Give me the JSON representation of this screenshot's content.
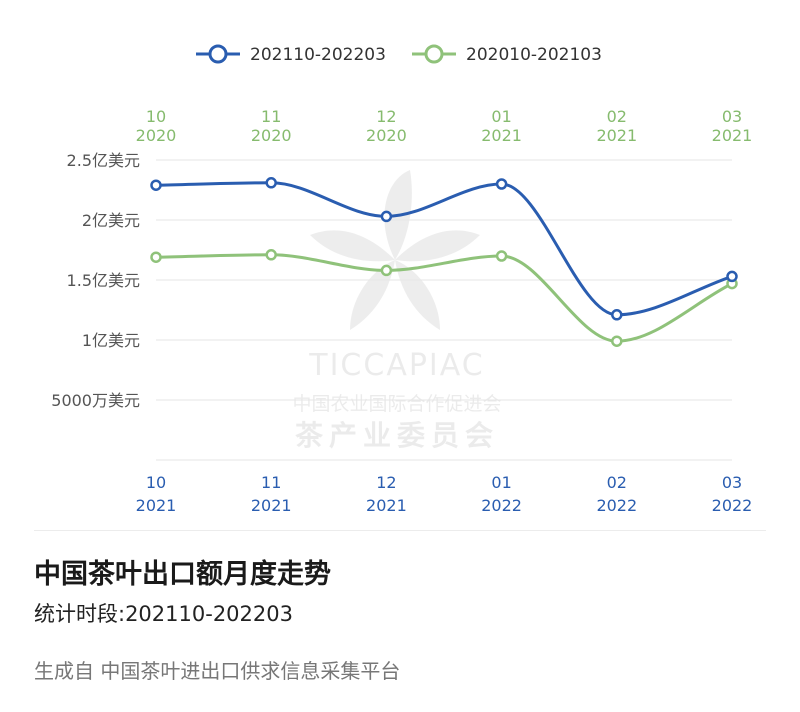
{
  "chart_data": {
    "type": "line",
    "legend_position": "top-center",
    "grid": true,
    "ylim": [
      0,
      2.5
    ],
    "y_ticks": [
      {
        "value": 2.5,
        "label": "2.5亿美元"
      },
      {
        "value": 2.0,
        "label": "2亿美元"
      },
      {
        "value": 1.5,
        "label": "1.5亿美元"
      },
      {
        "value": 1.0,
        "label": "1亿美元"
      },
      {
        "value": 0.5,
        "label": "5000万美元"
      }
    ],
    "x_bottom": {
      "color": "#2a5db0",
      "ticks": [
        {
          "month": "10",
          "year": "2021"
        },
        {
          "month": "11",
          "year": "2021"
        },
        {
          "month": "12",
          "year": "2021"
        },
        {
          "month": "01",
          "year": "2022"
        },
        {
          "month": "02",
          "year": "2022"
        },
        {
          "month": "03",
          "year": "2022"
        }
      ]
    },
    "x_top": {
      "color": "#86bb6e",
      "ticks": [
        {
          "month": "10",
          "year": "2020"
        },
        {
          "month": "11",
          "year": "2020"
        },
        {
          "month": "12",
          "year": "2020"
        },
        {
          "month": "01",
          "year": "2021"
        },
        {
          "month": "02",
          "year": "2021"
        },
        {
          "month": "03",
          "year": "2021"
        }
      ]
    },
    "series": [
      {
        "name": "202110-202203",
        "color": "#2a5db0",
        "axis": "bottom",
        "values": [
          2.29,
          2.31,
          2.03,
          2.3,
          1.21,
          1.53
        ]
      },
      {
        "name": "202010-202103",
        "color": "#8fc27a",
        "axis": "top",
        "values": [
          1.69,
          1.71,
          1.58,
          1.7,
          0.99,
          1.47
        ]
      }
    ]
  },
  "watermark": {
    "brand": "TICCAPIAC",
    "org": "中国农业国际合作促进会",
    "committee": "茶产业委员会"
  },
  "footer": {
    "title": "中国茶叶出口额月度走势",
    "subtitle": "统计时段:202110-202203",
    "source": "生成自 中国茶叶进出口供求信息采集平台"
  }
}
